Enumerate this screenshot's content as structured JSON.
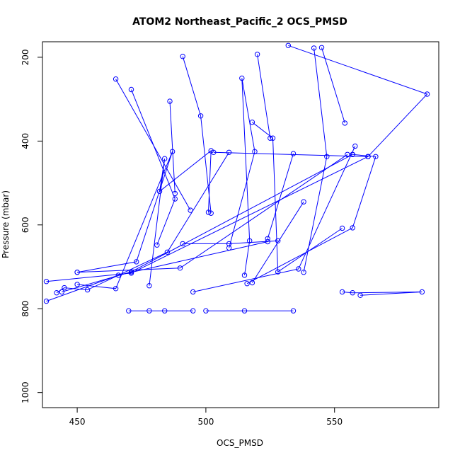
{
  "chart_data": {
    "type": "line",
    "title": "ATOM2 Northeast_Pacific_2 OCS_PMSD",
    "xlabel": "OCS_PMSD",
    "ylabel": "Pressure (mbar)",
    "xlim": [
      436.5,
      590.5
    ],
    "ylim": [
      1036,
      163
    ],
    "y_inverted": true,
    "xticks": [
      450,
      500,
      550
    ],
    "yticks": [
      200,
      400,
      600,
      800,
      1000
    ],
    "grid": false,
    "legend": "none",
    "color": "#0000ff",
    "series": [
      {
        "values": [
          [
            442,
            762
          ],
          [
            445,
            750
          ],
          [
            454,
            755
          ],
          [
            485,
            665
          ],
          [
            509,
            427
          ]
        ]
      },
      {
        "values": [
          [
            500,
            805
          ],
          [
            515,
            805
          ],
          [
            534,
            805
          ]
        ]
      },
      {
        "values": [
          [
            470,
            805
          ],
          [
            478,
            805
          ],
          [
            484,
            805
          ],
          [
            495,
            805
          ]
        ]
      },
      {
        "values": [
          [
            438,
            782
          ],
          [
            466,
            720
          ],
          [
            524,
            640
          ]
        ]
      },
      {
        "values": [
          [
            438,
            735
          ],
          [
            471,
            715
          ],
          [
            563,
            437
          ]
        ]
      },
      {
        "values": [
          [
            444,
            760
          ],
          [
            471,
            712
          ],
          [
            557,
            432
          ]
        ]
      },
      {
        "values": [
          [
            450,
            742
          ],
          [
            465,
            752
          ],
          [
            487,
            425
          ],
          [
            473,
            688
          ],
          [
            450,
            713
          ]
        ]
      },
      {
        "values": [
          [
            450,
            713
          ],
          [
            490,
            703
          ],
          [
            555,
            432
          ]
        ]
      },
      {
        "values": [
          [
            465,
            252
          ],
          [
            494,
            565
          ]
        ]
      },
      {
        "values": [
          [
            471,
            277
          ],
          [
            488,
            538
          ],
          [
            481,
            648
          ]
        ]
      },
      {
        "values": [
          [
            478,
            745
          ],
          [
            484,
            442
          ],
          [
            482,
            520
          ],
          [
            502,
            423
          ],
          [
            501,
            570
          ]
        ]
      },
      {
        "values": [
          [
            486,
            305
          ],
          [
            488,
            525
          ]
        ]
      },
      {
        "values": [
          [
            491,
            198
          ],
          [
            498,
            340
          ],
          [
            502,
            572
          ]
        ]
      },
      {
        "values": [
          [
            491,
            645
          ],
          [
            509,
            645
          ],
          [
            528,
            638
          ]
        ]
      },
      {
        "values": [
          [
            495,
            760
          ],
          [
            536,
            705
          ],
          [
            558,
            412
          ]
        ]
      },
      {
        "values": [
          [
            509,
            655
          ],
          [
            519,
            425
          ],
          [
            514,
            250
          ],
          [
            517,
            638
          ],
          [
            515,
            720
          ]
        ]
      },
      {
        "values": [
          [
            518,
            355
          ],
          [
            526,
            393
          ],
          [
            528,
            712
          ],
          [
            553,
            608
          ]
        ]
      },
      {
        "values": [
          [
            520,
            193
          ],
          [
            525,
            393
          ]
        ]
      },
      {
        "values": [
          [
            516,
            740
          ],
          [
            557,
            607
          ],
          [
            566,
            437
          ],
          [
            557,
            432
          ]
        ]
      },
      {
        "values": [
          [
            518,
            738
          ],
          [
            538,
            545
          ]
        ]
      },
      {
        "values": [
          [
            524,
            633
          ],
          [
            534,
            430
          ]
        ]
      },
      {
        "values": [
          [
            538,
            713
          ],
          [
            547,
            437
          ],
          [
            542,
            178
          ]
        ]
      },
      {
        "values": [
          [
            554,
            357
          ],
          [
            545,
            177
          ]
        ]
      },
      {
        "values": [
          [
            532,
            172
          ],
          [
            586,
            288
          ],
          [
            563,
            437
          ]
        ]
      },
      {
        "values": [
          [
            553,
            760
          ],
          [
            557,
            762
          ],
          [
            584,
            760
          ],
          [
            560,
            768
          ]
        ]
      },
      {
        "values": [
          [
            563,
            437
          ],
          [
            503,
            427
          ]
        ]
      }
    ]
  }
}
